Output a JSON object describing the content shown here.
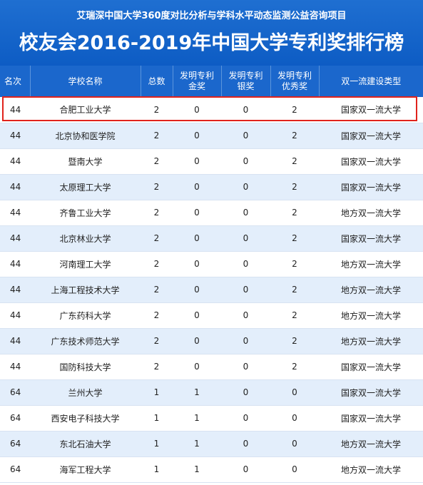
{
  "header": {
    "subtitle": "艾瑞深中国大学360度对比分析与学科水平动态监测公益咨询项目",
    "title": "校友会2016-2019年中国大学专利奖排行榜"
  },
  "table": {
    "columns": [
      [
        "名次"
      ],
      [
        "学校名称"
      ],
      [
        "总数"
      ],
      [
        "发明专利",
        "金奖"
      ],
      [
        "发明专利",
        "银奖"
      ],
      [
        "发明专利",
        "优秀奖"
      ],
      [
        "双一流建设类型"
      ]
    ],
    "rows": [
      [
        "44",
        "合肥工业大学",
        "2",
        "0",
        "0",
        "2",
        "国家双一流大学"
      ],
      [
        "44",
        "北京协和医学院",
        "2",
        "0",
        "0",
        "2",
        "国家双一流大学"
      ],
      [
        "44",
        "暨南大学",
        "2",
        "0",
        "0",
        "2",
        "国家双一流大学"
      ],
      [
        "44",
        "太原理工大学",
        "2",
        "0",
        "0",
        "2",
        "国家双一流大学"
      ],
      [
        "44",
        "齐鲁工业大学",
        "2",
        "0",
        "0",
        "2",
        "地方双一流大学"
      ],
      [
        "44",
        "北京林业大学",
        "2",
        "0",
        "0",
        "2",
        "国家双一流大学"
      ],
      [
        "44",
        "河南理工大学",
        "2",
        "0",
        "0",
        "2",
        "地方双一流大学"
      ],
      [
        "44",
        "上海工程技术大学",
        "2",
        "0",
        "0",
        "2",
        "地方双一流大学"
      ],
      [
        "44",
        "广东药科大学",
        "2",
        "0",
        "0",
        "2",
        "地方双一流大学"
      ],
      [
        "44",
        "广东技术师范大学",
        "2",
        "0",
        "0",
        "2",
        "地方双一流大学"
      ],
      [
        "44",
        "国防科技大学",
        "2",
        "0",
        "0",
        "2",
        "国家双一流大学"
      ],
      [
        "64",
        "兰州大学",
        "1",
        "1",
        "0",
        "0",
        "国家双一流大学"
      ],
      [
        "64",
        "西安电子科技大学",
        "1",
        "1",
        "0",
        "0",
        "国家双一流大学"
      ],
      [
        "64",
        "东北石油大学",
        "1",
        "1",
        "0",
        "0",
        "地方双一流大学"
      ],
      [
        "64",
        "海军工程大学",
        "1",
        "1",
        "0",
        "0",
        "地方双一流大学"
      ]
    ],
    "highlighted_row": 0,
    "highlight_color": "#e0231c"
  },
  "colors": {
    "header_blue": "#1b67cc",
    "row_alt": "#e3eefb"
  }
}
